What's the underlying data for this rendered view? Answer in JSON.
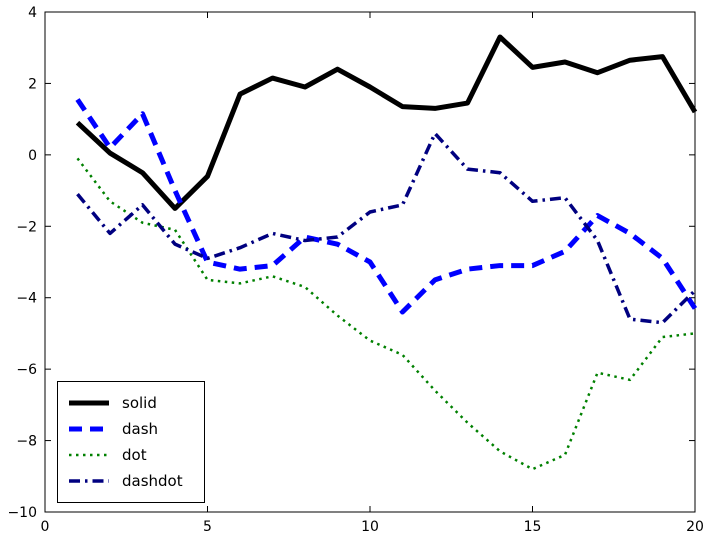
{
  "figure": {
    "background": "#ffffff",
    "frame_color": "#000000"
  },
  "chart_data": {
    "type": "line",
    "title": "",
    "xlabel": "",
    "ylabel": "",
    "grid": false,
    "xlim": [
      0,
      20
    ],
    "ylim": [
      -10,
      4
    ],
    "xticks": [
      0,
      5,
      10,
      15,
      20
    ],
    "yticks": [
      -10,
      -8,
      -6,
      -4,
      -2,
      0,
      2,
      4
    ],
    "legend_position": "lower left",
    "x": [
      1,
      2,
      3,
      4,
      5,
      6,
      7,
      8,
      9,
      10,
      11,
      12,
      13,
      14,
      15,
      16,
      17,
      18,
      19,
      20
    ],
    "series": [
      {
        "name": "solid",
        "style": "solid",
        "color": "#000000",
        "width": 5,
        "values": [
          0.9,
          0.05,
          -0.5,
          -1.5,
          -0.6,
          1.7,
          2.15,
          1.9,
          2.4,
          1.9,
          1.35,
          1.3,
          1.45,
          3.3,
          2.45,
          2.6,
          2.3,
          2.65,
          2.75,
          1.2
        ]
      },
      {
        "name": "dash",
        "style": "dash",
        "color": "#0000ff",
        "width": 5,
        "values": [
          1.55,
          0.2,
          1.15,
          -1.0,
          -3.0,
          -3.2,
          -3.1,
          -2.3,
          -2.5,
          -3.0,
          -4.4,
          -3.5,
          -3.2,
          -3.1,
          -3.1,
          -2.7,
          -1.7,
          -2.2,
          -2.9,
          -4.3
        ]
      },
      {
        "name": "dot",
        "style": "dot",
        "color": "#008000",
        "width": 2.5,
        "values": [
          -0.1,
          -1.3,
          -1.9,
          -2.1,
          -3.5,
          -3.6,
          -3.4,
          -3.7,
          -4.5,
          -5.2,
          -5.6,
          -6.6,
          -7.5,
          -8.3,
          -8.8,
          -8.4,
          -6.1,
          -6.3,
          -5.1,
          -5.0
        ]
      },
      {
        "name": "dashdot",
        "style": "dashdot",
        "color": "#000080",
        "width": 3.5,
        "values": [
          -1.1,
          -2.2,
          -1.4,
          -2.5,
          -2.9,
          -2.6,
          -2.2,
          -2.4,
          -2.3,
          -1.6,
          -1.4,
          0.6,
          -0.4,
          -0.5,
          -1.3,
          -1.2,
          -2.4,
          -4.6,
          -4.7,
          -3.8
        ]
      }
    ]
  },
  "legend": {
    "items": [
      {
        "label": "solid"
      },
      {
        "label": "dash"
      },
      {
        "label": "dot"
      },
      {
        "label": "dashdot"
      }
    ]
  }
}
